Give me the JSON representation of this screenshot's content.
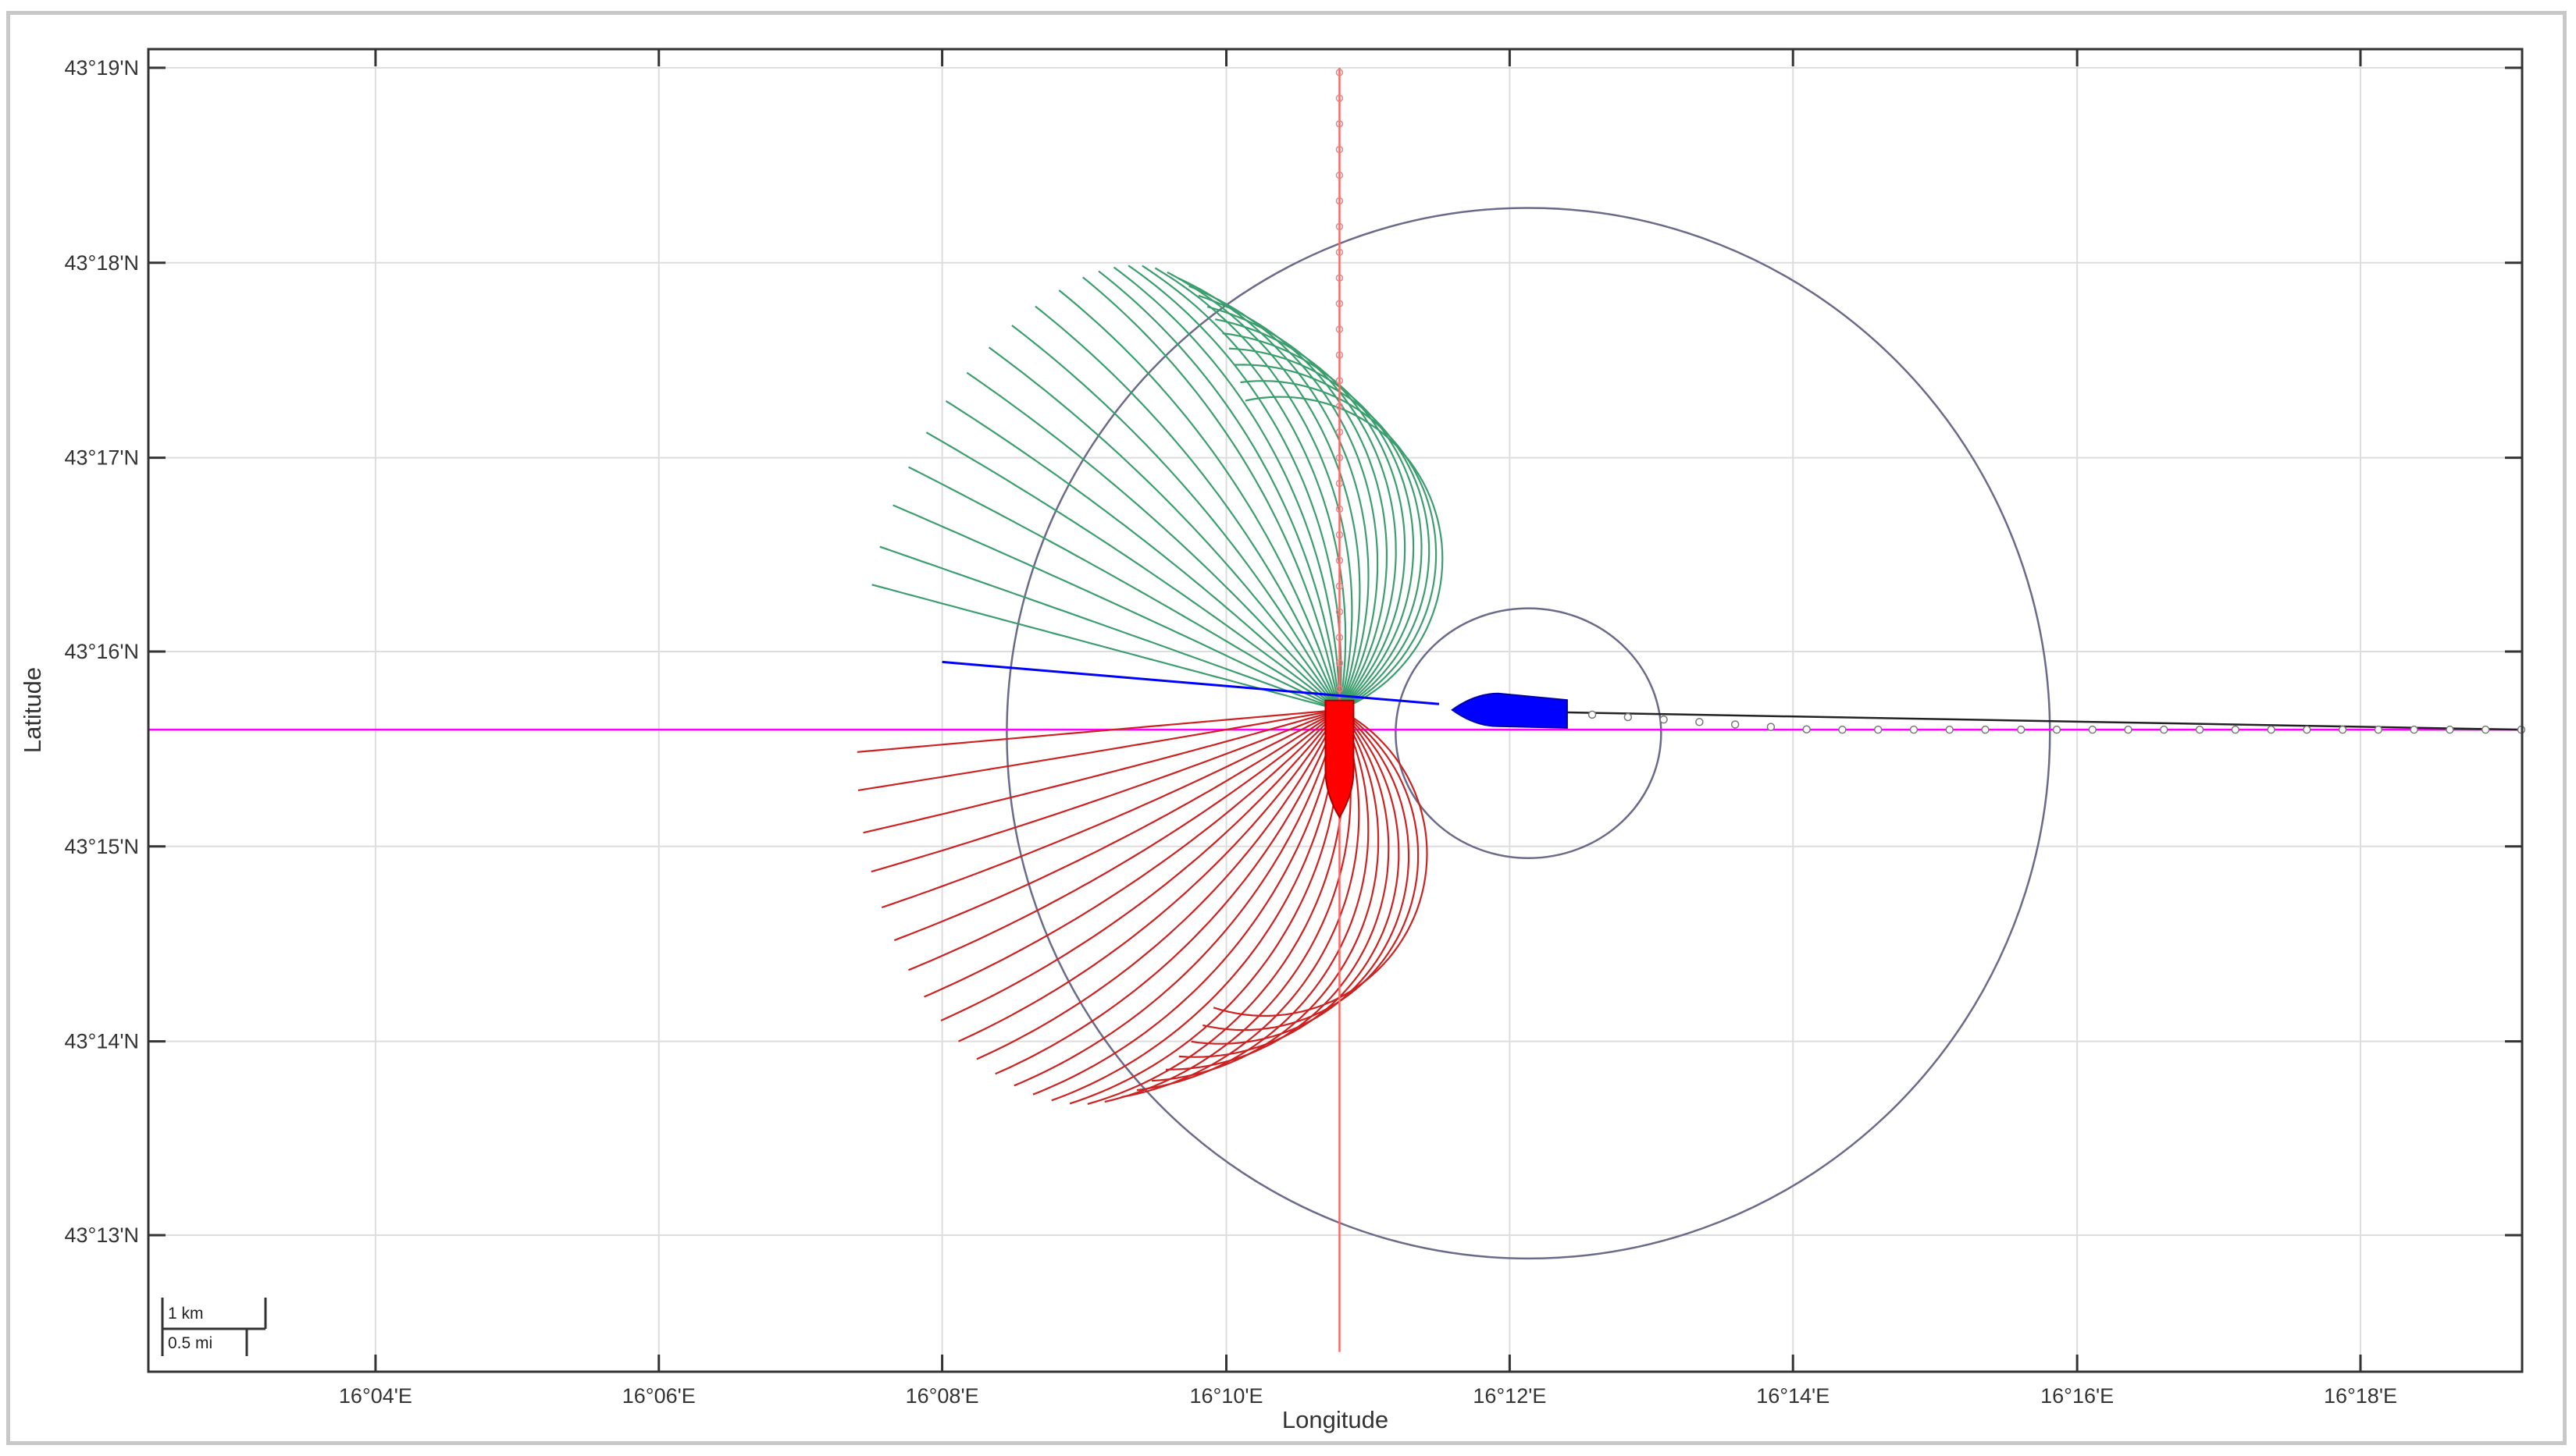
{
  "chart_data": {
    "type": "map-plot",
    "xlabel": "Longitude",
    "ylabel": "Latitude",
    "x_unit": "degrees_east",
    "y_unit": "degrees_north",
    "xlim": [
      16.04,
      16.319
    ],
    "ylim": [
      43.205,
      43.3183
    ],
    "x_ticks": [
      {
        "value": 16.0667,
        "label": "16°04'E"
      },
      {
        "value": 16.1,
        "label": "16°06'E"
      },
      {
        "value": 16.1333,
        "label": "16°08'E"
      },
      {
        "value": 16.1667,
        "label": "16°10'E"
      },
      {
        "value": 16.2,
        "label": "16°12'E"
      },
      {
        "value": 16.2333,
        "label": "16°14'E"
      },
      {
        "value": 16.2667,
        "label": "16°16'E"
      },
      {
        "value": 16.3,
        "label": "16°18'E"
      }
    ],
    "y_ticks": [
      {
        "value": 43.2167,
        "label": "43°13'N"
      },
      {
        "value": 43.2333,
        "label": "43°14'N"
      },
      {
        "value": 43.25,
        "label": "43°15'N"
      },
      {
        "value": 43.2667,
        "label": "43°16'N"
      },
      {
        "value": 43.2833,
        "label": "43°17'N"
      },
      {
        "value": 43.3,
        "label": "43°18'N"
      },
      {
        "value": 43.3167,
        "label": "43°19'N"
      }
    ],
    "grid": true,
    "scale_bar": {
      "label_km": "1 km",
      "label_mi": "0.5 mi"
    },
    "colors": {
      "green_fan": "#3c9e6e",
      "red_fan": "#cc2222",
      "red_ship": "#ff0000",
      "blue_ship": "#0000ff",
      "magenta_line": "#ff00ff",
      "circles": "#6a6a8a",
      "grid": "#dddddd"
    },
    "circles": [
      {
        "name": "outer-circle",
        "center": [
          16.2022,
          43.2597
        ],
        "radius_lon": 0.0613,
        "radius_lat": 0.045
      },
      {
        "name": "inner-circle",
        "center": [
          16.2022,
          43.2597
        ],
        "radius_lon": 0.0156,
        "radius_lat": 0.0107
      }
    ],
    "magenta_line": {
      "y": 43.26,
      "x_start": 16.04,
      "x_end": 16.319
    },
    "blue_heading_line": {
      "points": [
        [
          16.1333,
          43.2658
        ],
        [
          16.1917,
          43.2622
        ]
      ]
    },
    "blue_ship": {
      "center": [
        16.2,
        43.2617
      ],
      "length_lon": 0.0135,
      "heading": "east"
    },
    "blue_track": {
      "x_start": 16.2055,
      "x_end": 16.319,
      "y_start": 43.2615,
      "y_end": 43.26,
      "marker_step": 0.0042
    },
    "red_ship": {
      "center": [
        16.18,
        43.2575
      ],
      "length_lat": 0.01,
      "heading": "south"
    },
    "red_track": {
      "x": 16.18,
      "y_start": 43.2067,
      "y_end": 43.3167,
      "marker_step": 0.0022
    },
    "fan_origin": [
      16.18,
      43.2617
    ],
    "green_fan": {
      "start_angles_deg": [
        -165,
        -160,
        -154,
        -148,
        -142,
        -136,
        -130,
        -124,
        -118,
        -112,
        -106,
        -100,
        -95,
        -90,
        -85,
        -80,
        -75,
        -70,
        -65,
        -60,
        -55,
        -50,
        -45,
        -40,
        -35,
        -30,
        -25,
        -20
      ],
      "turn_max_deg": -180
    },
    "red_fan": {
      "start_angles_deg": [
        -175,
        -170,
        -164,
        -158,
        -152,
        -146,
        -140,
        -134,
        -128,
        -122,
        -116,
        -110,
        -104,
        -98,
        -92,
        -86,
        -80,
        -74,
        -68,
        -62,
        -56,
        -50,
        -44,
        -38,
        -32,
        -26
      ],
      "turn_max_deg": 180
    }
  }
}
